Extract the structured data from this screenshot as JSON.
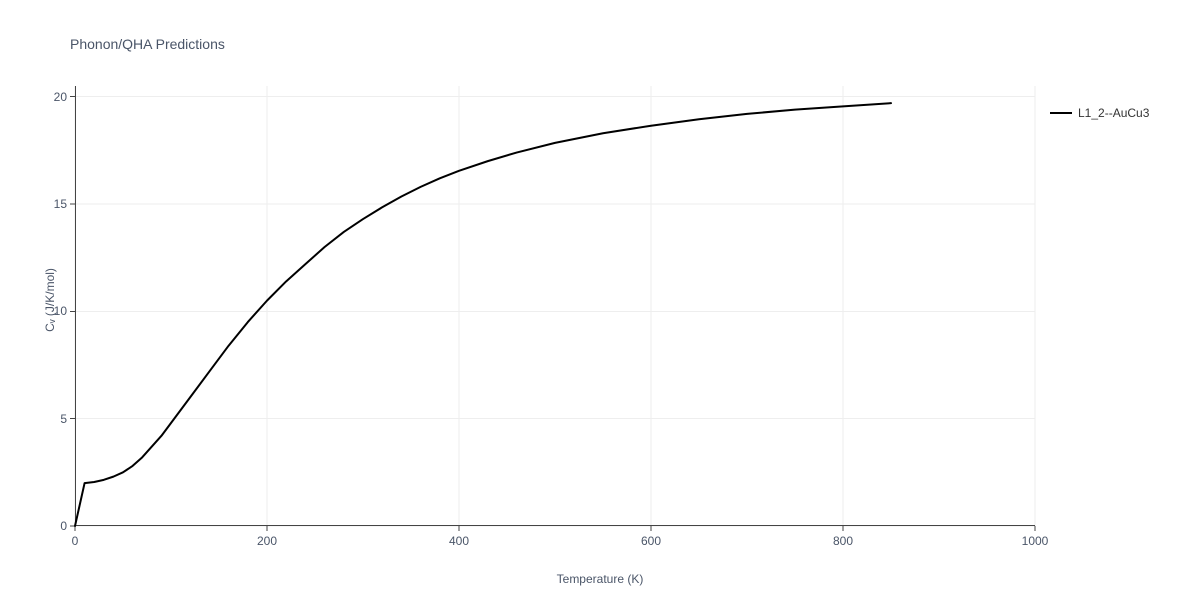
{
  "chart": {
    "type": "line",
    "title": "Phonon/QHA Predictions",
    "title_fontsize": 14,
    "title_color": "#4a5568",
    "xlabel": "Temperature (K)",
    "ylabel": "Cᵥ (J/K/mol)",
    "label_fontsize": 12,
    "label_color": "#4a5568",
    "background_color": "#ffffff",
    "plot_background": "#ffffff",
    "axis_line_color": "#444444",
    "grid_color": "#eeeeee",
    "grid_on": true,
    "xlim": [
      0,
      1000
    ],
    "ylim": [
      0,
      20.5
    ],
    "xticks": [
      0,
      200,
      400,
      600,
      800,
      1000
    ],
    "yticks": [
      0,
      5,
      10,
      15,
      20
    ],
    "xtick_labels": [
      "0",
      "200",
      "400",
      "600",
      "800",
      "1000"
    ],
    "ytick_labels": [
      "0",
      "5",
      "10",
      "15",
      "20"
    ],
    "tick_fontsize": 12,
    "tick_color": "#4a5568",
    "tick_mark_color": "#444444",
    "tick_mark_length": 5,
    "line_width": 2,
    "legend": {
      "position": "right",
      "fontsize": 12,
      "font_color": "#333333",
      "swatch_width": 22,
      "swatch_stroke": 2
    },
    "series": [
      {
        "name": "L1_2--AuCu3",
        "color": "#000000",
        "line_width": 2,
        "x": [
          0,
          10,
          20,
          30,
          40,
          50,
          60,
          70,
          80,
          90,
          100,
          120,
          140,
          160,
          180,
          200,
          220,
          240,
          260,
          280,
          300,
          320,
          340,
          360,
          380,
          400,
          430,
          460,
          500,
          550,
          600,
          650,
          700,
          750,
          800,
          850
        ],
        "y": [
          0.0,
          2.0,
          2.05,
          2.15,
          2.3,
          2.5,
          2.8,
          3.2,
          3.7,
          4.2,
          4.8,
          6.0,
          7.2,
          8.4,
          9.5,
          10.5,
          11.4,
          12.2,
          13.0,
          13.7,
          14.3,
          14.85,
          15.35,
          15.8,
          16.2,
          16.55,
          17.0,
          17.4,
          17.85,
          18.3,
          18.65,
          18.95,
          19.2,
          19.4,
          19.55,
          19.7
        ]
      }
    ]
  }
}
